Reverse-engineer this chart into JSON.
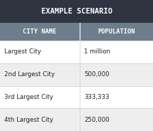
{
  "title": "EXAMPLE SCENARIO",
  "col_headers": [
    "CITY NAME",
    "POPULATION"
  ],
  "rows": [
    [
      "Largest City",
      "1 million"
    ],
    [
      "2nd Largest City",
      "500,000"
    ],
    [
      "3rd Largest City",
      "333,333"
    ],
    [
      "4th Largest City",
      "250,000"
    ]
  ],
  "title_bg": "#2e3440",
  "header_bg": "#6d7d8b",
  "row_bg_white": "#ffffff",
  "row_bg_gray": "#eeeeee",
  "divider_color": "#cccccc",
  "title_color": "#ffffff",
  "header_color": "#ffffff",
  "cell_color": "#222222",
  "title_fontsize": 7.5,
  "header_fontsize": 6.2,
  "cell_fontsize": 6.2,
  "figsize": [
    2.15,
    1.84
  ],
  "dpi": 100,
  "col_split": 0.52
}
